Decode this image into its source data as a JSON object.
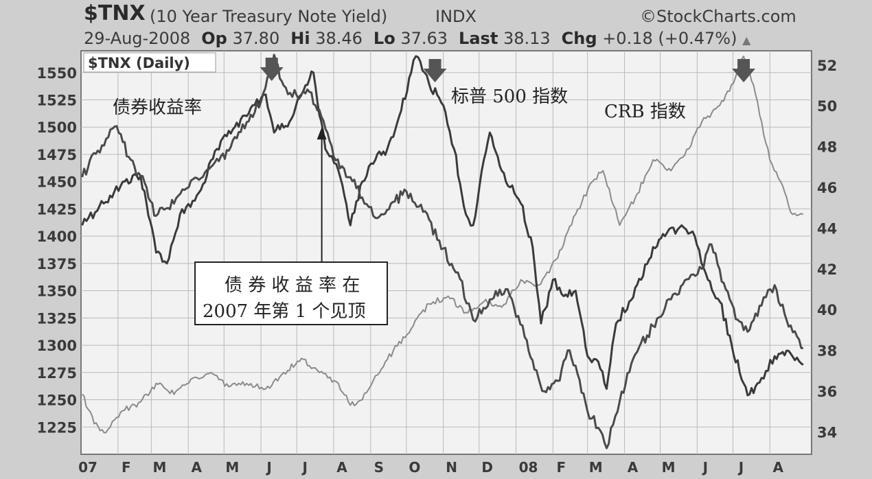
{
  "header": {
    "ticker": "$TNX",
    "description": "(10 Year Treasury Note Yield)",
    "exchange": "INDX",
    "brand": "©StockCharts.com",
    "date": "29-Aug-2008",
    "open_label": "Op",
    "open": "37.80",
    "high_label": "Hi",
    "high": "38.46",
    "low_label": "Lo",
    "low": "37.63",
    "last_label": "Last",
    "last": "38.13",
    "chg_label": "Chg",
    "chg": "+0.18 (+0.47%)",
    "chg_arrow": "▲"
  },
  "annotations": {
    "bond_yield": "债券收益率",
    "sp500": "标普 500 指数",
    "crb": "CRB 指数",
    "callout_line1": "债 券 收 益 率 在",
    "callout_line2": "2007 年第 1 个见顶"
  },
  "colors": {
    "background": "#cfcfcf",
    "plot_bg": "#f2f2f2",
    "grid": "#b9b9b9",
    "tnx_line": "#4a4a4a",
    "sp500_line": "#3a3a3a",
    "crb_line": "#8a8a8a",
    "marker": "#555555"
  },
  "chart_data": {
    "type": "line",
    "panel_label": "$TNX (Daily)",
    "x_tick_labels": [
      "07",
      "F",
      "M",
      "A",
      "M",
      "J",
      "J",
      "A",
      "S",
      "O",
      "N",
      "D",
      "08",
      "F",
      "M",
      "A",
      "M",
      "J",
      "J",
      "A"
    ],
    "left_axis": {
      "range": [
        1200,
        1570
      ],
      "ticks": [
        1225,
        1250,
        1275,
        1300,
        1325,
        1350,
        1375,
        1400,
        1425,
        1450,
        1475,
        1500,
        1525,
        1550
      ]
    },
    "right_axis": {
      "range": [
        32.9,
        52.7
      ],
      "ticks": [
        34,
        36,
        38,
        40,
        42,
        44,
        46,
        48,
        50,
        52
      ]
    },
    "grid": true,
    "series": [
      {
        "key": "sp500",
        "axis": "left",
        "dates": [
          "2007-01-02",
          "2007-01-20",
          "2007-02-05",
          "2007-02-20",
          "2007-03-05",
          "2007-03-14",
          "2007-03-25",
          "2007-04-10",
          "2007-04-25",
          "2007-05-10",
          "2007-05-25",
          "2007-06-05",
          "2007-06-12",
          "2007-06-25",
          "2007-07-05",
          "2007-07-15",
          "2007-07-25",
          "2007-08-05",
          "2007-08-15",
          "2007-08-25",
          "2007-09-05",
          "2007-09-15",
          "2007-09-25",
          "2007-10-05",
          "2007-10-09",
          "2007-10-20",
          "2007-11-01",
          "2007-11-10",
          "2007-11-20",
          "2007-11-26",
          "2007-12-05",
          "2007-12-10",
          "2007-12-20",
          "2008-01-05",
          "2008-01-15",
          "2008-01-22",
          "2008-02-01",
          "2008-02-10",
          "2008-02-20",
          "2008-03-01",
          "2008-03-10",
          "2008-03-17",
          "2008-03-25",
          "2008-04-05",
          "2008-04-15",
          "2008-04-25",
          "2008-05-05",
          "2008-05-19",
          "2008-05-30",
          "2008-06-10",
          "2008-06-20",
          "2008-06-30",
          "2008-07-10",
          "2008-07-15",
          "2008-07-25",
          "2008-08-05",
          "2008-08-15",
          "2008-08-29"
        ],
        "values": [
          1410,
          1430,
          1450,
          1455,
          1385,
          1375,
          1420,
          1440,
          1480,
          1500,
          1520,
          1530,
          1495,
          1505,
          1530,
          1550,
          1480,
          1460,
          1410,
          1450,
          1470,
          1480,
          1510,
          1550,
          1565,
          1540,
          1520,
          1480,
          1420,
          1410,
          1470,
          1495,
          1460,
          1430,
          1390,
          1320,
          1360,
          1345,
          1350,
          1290,
          1285,
          1260,
          1320,
          1340,
          1360,
          1390,
          1400,
          1410,
          1400,
          1360,
          1340,
          1300,
          1265,
          1255,
          1270,
          1290,
          1295,
          1282
        ]
      },
      {
        "key": "tnx",
        "axis": "right",
        "dates": [
          "2007-01-02",
          "2007-01-15",
          "2007-01-31",
          "2007-02-10",
          "2007-02-25",
          "2007-03-05",
          "2007-03-20",
          "2007-04-05",
          "2007-04-20",
          "2007-05-05",
          "2007-05-20",
          "2007-06-01",
          "2007-06-12",
          "2007-06-20",
          "2007-07-01",
          "2007-07-10",
          "2007-07-20",
          "2007-08-01",
          "2007-08-15",
          "2007-08-25",
          "2007-09-05",
          "2007-09-18",
          "2007-10-01",
          "2007-10-15",
          "2007-11-01",
          "2007-11-15",
          "2007-11-26",
          "2007-12-10",
          "2007-12-25",
          "2008-01-10",
          "2008-01-23",
          "2008-02-05",
          "2008-02-15",
          "2008-03-01",
          "2008-03-10",
          "2008-03-17",
          "2008-03-28",
          "2008-04-10",
          "2008-04-25",
          "2008-05-10",
          "2008-05-25",
          "2008-06-05",
          "2008-06-13",
          "2008-06-25",
          "2008-07-05",
          "2008-07-15",
          "2008-07-25",
          "2008-08-05",
          "2008-08-15",
          "2008-08-29"
        ],
        "values": [
          46.5,
          47.8,
          49.0,
          47.5,
          46.0,
          44.6,
          45.2,
          46.4,
          47.0,
          47.8,
          49.2,
          50.2,
          52.5,
          51.0,
          50.5,
          50.8,
          49.8,
          47.5,
          46.5,
          45.5,
          44.5,
          45.2,
          45.8,
          44.8,
          43.0,
          41.5,
          39.5,
          40.5,
          41.0,
          38.5,
          36.0,
          36.5,
          38.0,
          35.0,
          34.2,
          33.2,
          35.5,
          37.8,
          39.2,
          40.5,
          41.5,
          42.0,
          43.2,
          41.0,
          39.5,
          39.0,
          40.2,
          41.2,
          39.5,
          38.1
        ]
      },
      {
        "key": "crb",
        "axis": "left",
        "dates": [
          "2007-01-02",
          "2007-01-12",
          "2007-01-22",
          "2007-02-05",
          "2007-02-20",
          "2007-03-05",
          "2007-03-20",
          "2007-04-05",
          "2007-04-20",
          "2007-05-05",
          "2007-05-20",
          "2007-06-05",
          "2007-06-20",
          "2007-07-05",
          "2007-07-20",
          "2007-08-05",
          "2007-08-15",
          "2007-08-25",
          "2007-09-05",
          "2007-09-20",
          "2007-10-05",
          "2007-10-20",
          "2007-11-05",
          "2007-11-20",
          "2007-12-05",
          "2007-12-20",
          "2008-01-05",
          "2008-01-20",
          "2008-02-05",
          "2008-02-20",
          "2008-03-05",
          "2008-03-14",
          "2008-03-28",
          "2008-04-10",
          "2008-04-25",
          "2008-05-10",
          "2008-05-25",
          "2008-06-05",
          "2008-06-20",
          "2008-07-03",
          "2008-07-10",
          "2008-07-20",
          "2008-08-01",
          "2008-08-10",
          "2008-08-20",
          "2008-08-29"
        ],
        "values": [
          1255,
          1228,
          1220,
          1240,
          1248,
          1265,
          1255,
          1270,
          1275,
          1262,
          1265,
          1260,
          1275,
          1288,
          1275,
          1265,
          1245,
          1250,
          1272,
          1295,
          1315,
          1338,
          1345,
          1330,
          1340,
          1335,
          1360,
          1355,
          1380,
          1420,
          1450,
          1460,
          1410,
          1435,
          1470,
          1460,
          1480,
          1505,
          1520,
          1545,
          1565,
          1530,
          1470,
          1450,
          1420,
          1420
        ]
      }
    ],
    "markers": [
      {
        "date": "2007-06-10",
        "series": "tnx"
      },
      {
        "date": "2007-10-25",
        "series": "sp500"
      },
      {
        "date": "2008-07-10",
        "series": "crb"
      }
    ],
    "callout_arrow": {
      "date": "2007-07-22",
      "value": 1500
    }
  }
}
